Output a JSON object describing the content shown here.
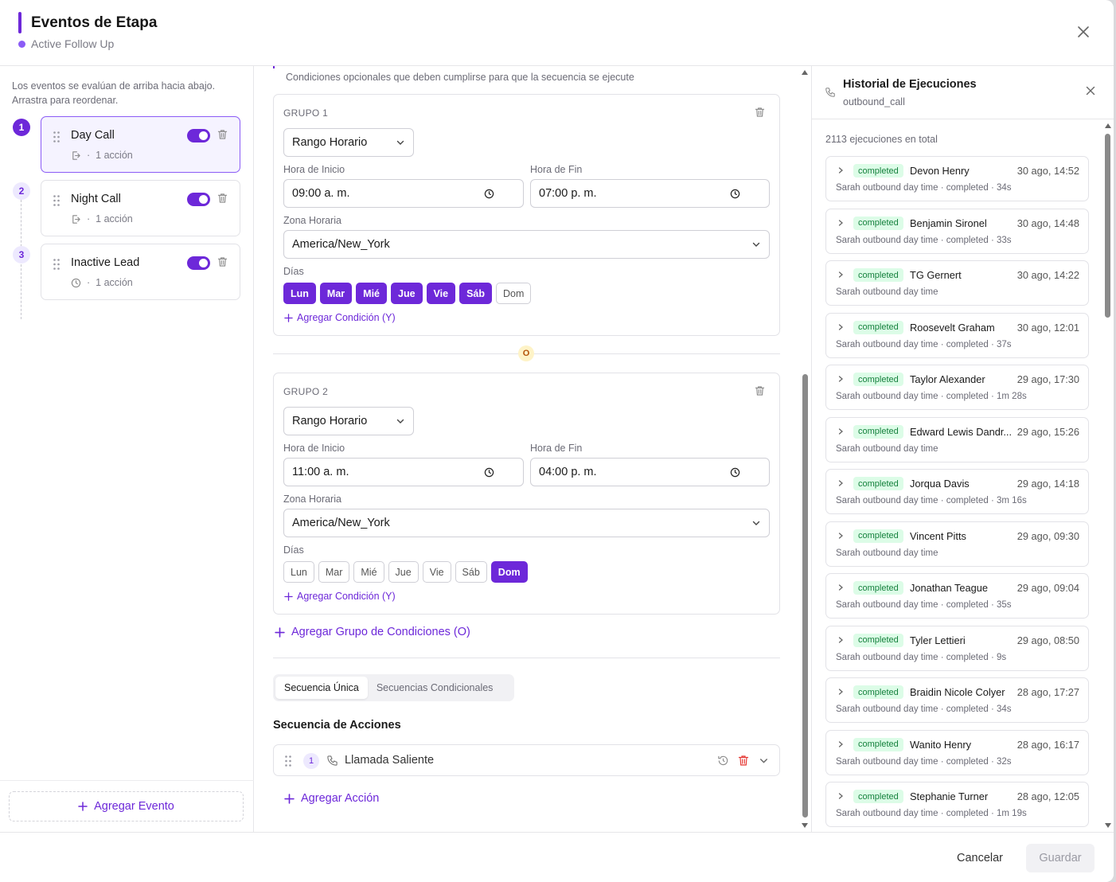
{
  "header": {
    "title": "Eventos de Etapa",
    "subtitle": "Active Follow Up"
  },
  "left": {
    "note": "Los eventos se evalúan de arriba hacia abajo. Arrastra para reordenar.",
    "events": [
      {
        "step": "1",
        "name": "Day Call",
        "actions": "1 acción",
        "enabled": true,
        "icon": "enter-icon"
      },
      {
        "step": "2",
        "name": "Night Call",
        "actions": "1 acción",
        "enabled": true,
        "icon": "enter-icon"
      },
      {
        "step": "3",
        "name": "Inactive Lead",
        "actions": "1 acción",
        "enabled": true,
        "icon": "clock-icon"
      }
    ],
    "add_event": "Agregar Evento"
  },
  "conditions": {
    "note": "Condiciones opcionales que deben cumplirse para que la secuencia se ejecute",
    "groups": [
      {
        "label": "GRUPO 1",
        "type": "Rango Horario",
        "start_label": "Hora de Inicio",
        "start": "09:00 a. m.",
        "end_label": "Hora de Fin",
        "end": "07:00 p. m.",
        "tz_label": "Zona Horaria",
        "tz": "America/New_York",
        "days_label": "Días",
        "days": [
          "Lun",
          "Mar",
          "Mié",
          "Jue",
          "Vie",
          "Sáb",
          "Dom"
        ],
        "days_on": [
          true,
          true,
          true,
          true,
          true,
          true,
          false
        ],
        "add_condition": "Agregar Condición (Y)"
      },
      {
        "label": "GRUPO 2",
        "type": "Rango Horario",
        "start_label": "Hora de Inicio",
        "start": "11:00 a. m.",
        "end_label": "Hora de Fin",
        "end": "04:00 p. m.",
        "tz_label": "Zona Horaria",
        "tz": "America/New_York",
        "days_label": "Días",
        "days": [
          "Lun",
          "Mar",
          "Mié",
          "Jue",
          "Vie",
          "Sáb",
          "Dom"
        ],
        "days_on": [
          false,
          false,
          false,
          false,
          false,
          false,
          true
        ],
        "add_condition": "Agregar Condición (Y)"
      }
    ],
    "or_label": "O",
    "add_group": "Agregar Grupo de Condiciones (O)"
  },
  "sequence": {
    "tabs": [
      "Secuencia Única",
      "Secuencias Condicionales"
    ],
    "title": "Secuencia de Acciones",
    "actions": [
      {
        "num": "1",
        "name": "Llamada Saliente"
      }
    ],
    "add_action": "Agregar Acción"
  },
  "history": {
    "title": "Historial de Ejecuciones",
    "subtitle": "outbound_call",
    "total": "2113 ejecuciones en total",
    "items": [
      {
        "status": "completed",
        "name": "Devon Henry",
        "when": "30 ago, 14:52",
        "desc": "Sarah outbound day time · completed · 34s"
      },
      {
        "status": "completed",
        "name": "Benjamin Sironel",
        "when": "30 ago, 14:48",
        "desc": "Sarah outbound day time · completed · 33s"
      },
      {
        "status": "completed",
        "name": "TG Gernert",
        "when": "30 ago, 14:22",
        "desc": "Sarah outbound day time"
      },
      {
        "status": "completed",
        "name": "Roosevelt Graham",
        "when": "30 ago, 12:01",
        "desc": "Sarah outbound day time · completed · 37s"
      },
      {
        "status": "completed",
        "name": "Taylor Alexander",
        "when": "29 ago, 17:30",
        "desc": "Sarah outbound day time · completed · 1m 28s"
      },
      {
        "status": "completed",
        "name": "Edward Lewis Dandr...",
        "when": "29 ago, 15:26",
        "desc": "Sarah outbound day time"
      },
      {
        "status": "completed",
        "name": "Jorqua Davis",
        "when": "29 ago, 14:18",
        "desc": "Sarah outbound day time · completed · 3m 16s"
      },
      {
        "status": "completed",
        "name": "Vincent Pitts",
        "when": "29 ago, 09:30",
        "desc": "Sarah outbound day time"
      },
      {
        "status": "completed",
        "name": "Jonathan Teague",
        "when": "29 ago, 09:04",
        "desc": "Sarah outbound day time · completed · 35s"
      },
      {
        "status": "completed",
        "name": "Tyler Lettieri",
        "when": "29 ago, 08:50",
        "desc": "Sarah outbound day time · completed · 9s"
      },
      {
        "status": "completed",
        "name": "Braidin Nicole Colyer",
        "when": "28 ago, 17:27",
        "desc": "Sarah outbound day time · completed · 34s"
      },
      {
        "status": "completed",
        "name": "Wanito Henry",
        "when": "28 ago, 16:17",
        "desc": "Sarah outbound day time · completed · 32s"
      },
      {
        "status": "completed",
        "name": "Stephanie Turner",
        "when": "28 ago, 12:05",
        "desc": "Sarah outbound day time · completed · 1m 19s"
      }
    ]
  },
  "footer": {
    "cancel": "Cancelar",
    "save": "Guardar"
  },
  "colors": {
    "accent": "#6d28d9",
    "success_bg": "#dcfce7",
    "success_text": "#15803d"
  }
}
